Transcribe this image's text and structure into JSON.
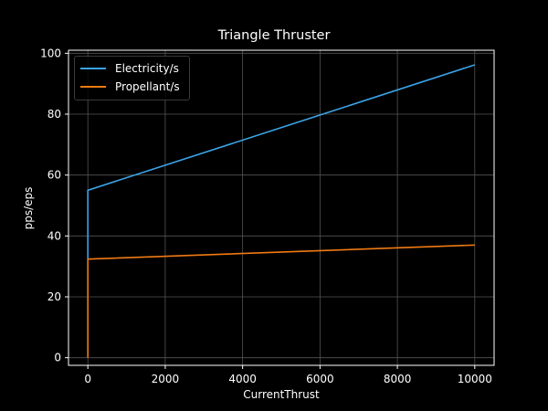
{
  "chart_data": {
    "type": "line",
    "title": "Triangle Thruster",
    "xlabel": "CurrentThrust",
    "ylabel": "pps/eps",
    "xlim": [
      -500,
      10500
    ],
    "ylim": [
      -2.5,
      101
    ],
    "xticks": [
      0,
      2000,
      4000,
      6000,
      8000,
      10000
    ],
    "yticks": [
      0,
      20,
      40,
      60,
      80,
      100
    ],
    "grid": true,
    "legend_position": "upper left",
    "series": [
      {
        "name": "Electricity/s",
        "color": "#3ba3e6",
        "x": [
          0,
          0,
          10000
        ],
        "y": [
          32.4,
          55.0,
          96.2
        ]
      },
      {
        "name": "Propellant/s",
        "color": "#f07a13",
        "x": [
          0,
          0,
          10000
        ],
        "y": [
          0,
          32.4,
          37.0
        ]
      }
    ]
  },
  "legend": {
    "items": [
      {
        "label": "Electricity/s",
        "color": "#3ba3e6"
      },
      {
        "label": "Propellant/s",
        "color": "#f07a13"
      }
    ]
  }
}
